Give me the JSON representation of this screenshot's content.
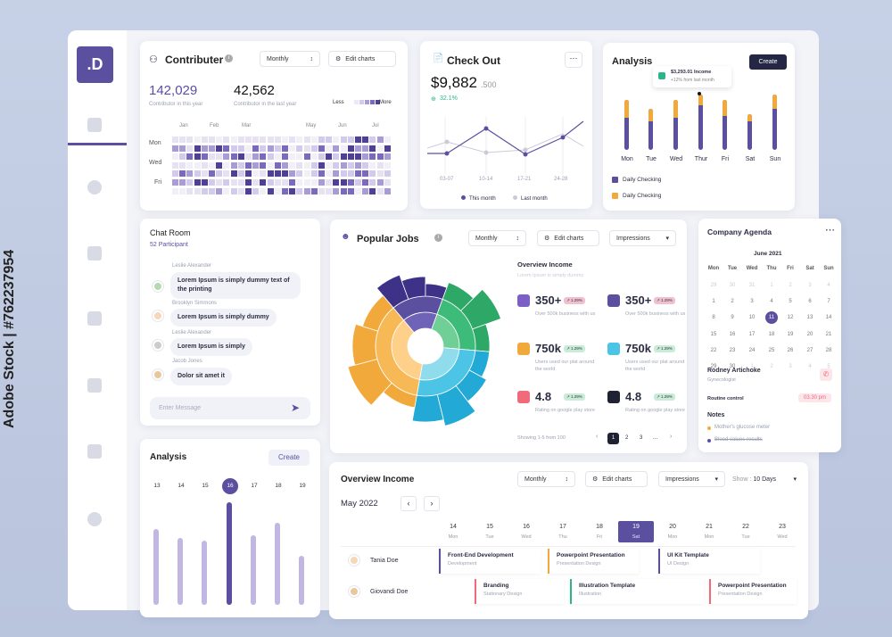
{
  "logo": ".D",
  "stock_watermark": "Adobe Stock | #762237954",
  "contributer": {
    "title": "Contributer",
    "period": "Monthly",
    "edit": "Edit charts",
    "stat1_value": "142,029",
    "stat1_label": "Contributor in this year",
    "stat2_value": "42,562",
    "stat2_label": "Contributor in the last year",
    "legend_less": "Less",
    "legend_more": "More",
    "months": [
      "Jan",
      "Feb",
      "Mar",
      "May",
      "Jun",
      "Jul"
    ],
    "days": [
      "Mon",
      "Wed",
      "Fri"
    ]
  },
  "checkout": {
    "title": "Check Out",
    "amount": "$9,882",
    "cents": ".500",
    "growth": "32.1%",
    "x_labels": [
      "03-07",
      "10-14",
      "17-21",
      "24-28"
    ],
    "legend_this": "This month",
    "legend_last": "Last month",
    "colors": {
      "this": "#5b4fa0",
      "last": "#c9ccd8"
    }
  },
  "analysis_top": {
    "title": "Analysis",
    "create": "Create",
    "tooltip_value": "$3,293.01 Income",
    "tooltip_sub": "+12% from last month",
    "days": [
      "Mon",
      "Tue",
      "Wed",
      "Thur",
      "Fri",
      "Sat",
      "Sun"
    ],
    "legend": [
      "Daily Checking",
      "Daily Checking"
    ],
    "colors": {
      "purple": "#5b4fa0",
      "orange": "#f2a93b"
    }
  },
  "chat": {
    "title": "Chat Room",
    "participants": "52 Participant",
    "messages": [
      {
        "name": "Leslie Alexander",
        "text": "Lorem Ipsum is simply dummy text of the printing"
      },
      {
        "name": "Brooklyn Simmons",
        "text": "Lorem Ipsum is simply dummy"
      },
      {
        "name": "Leslie Alexander",
        "text": "Lorem Ipsum is simply"
      },
      {
        "name": "Jacob Jones",
        "text": "Dolor sit amet it"
      }
    ],
    "input_placeholder": "Enter Message"
  },
  "popular": {
    "title": "Popular Jobs",
    "period": "Monthly",
    "edit": "Edit charts",
    "metric": "Impressions",
    "overview_title": "Overview Income",
    "overview_sub": "Lorem Ipsum is simply dummy",
    "stats": [
      {
        "value": "350+",
        "badge": "1.29%",
        "sub": "Over 500k business with us",
        "color": "#7b5fc7",
        "badge_color": "#f1c0d0"
      },
      {
        "value": "350+",
        "badge": "1.29%",
        "sub": "Over 500k business with us",
        "color": "#5b4fa0",
        "badge_color": "#f1c0d0"
      },
      {
        "value": "750k",
        "badge": "1.29%",
        "sub": "Users used our plat around the world",
        "color": "#f2a93b",
        "badge_color": "#c8ecd8"
      },
      {
        "value": "750k",
        "badge": "1.29%",
        "sub": "Users used our plat around the world",
        "color": "#4cc4e6",
        "badge_color": "#c8ecd8"
      },
      {
        "value": "4.8",
        "badge": "1.29%",
        "sub": "Rating on google play store",
        "color": "#f06a7a",
        "badge_color": "#c8ecd8"
      },
      {
        "value": "4.8",
        "badge": "1.29%",
        "sub": "Rating on google play store",
        "color": "#1f2233",
        "badge_color": "#c8ecd8"
      }
    ],
    "showing": "Showing 1-5 from 100",
    "pages": [
      "1",
      "2",
      "3",
      "..."
    ]
  },
  "agenda": {
    "title": "Company Agenda",
    "month": "June 2021",
    "weekdays": [
      "Mon",
      "Tue",
      "Wed",
      "Thu",
      "Fri",
      "Sat",
      "Sun"
    ],
    "rows": [
      [
        "29",
        "30",
        "31",
        "1",
        "2",
        "3",
        "4"
      ],
      [
        "1",
        "2",
        "3",
        "4",
        "5",
        "6",
        "7"
      ],
      [
        "8",
        "9",
        "10",
        "11",
        "12",
        "13",
        "14"
      ],
      [
        "15",
        "16",
        "17",
        "18",
        "19",
        "20",
        "21"
      ],
      [
        "22",
        "23",
        "24",
        "25",
        "26",
        "27",
        "28"
      ],
      [
        "29",
        "30",
        "1",
        "2",
        "3",
        "4",
        "5"
      ]
    ],
    "selected": "11",
    "doctor_name": "Rodney Artichoke",
    "doctor_role": "Gynecologist",
    "routine": "Routine control",
    "routine_time": "03.30 pm",
    "notes_title": "Notes",
    "notes": [
      "Mother's glucose meter",
      "Blood values results"
    ]
  },
  "analysis_bottom": {
    "title": "Analysis",
    "create": "Create",
    "days": [
      "13",
      "14",
      "15",
      "16",
      "17",
      "18",
      "19"
    ],
    "selected": "16"
  },
  "overview": {
    "title": "Overview Income",
    "period": "Monthly",
    "edit": "Edit charts",
    "metric": "Impressions",
    "show": "Show :",
    "show_value": "10 Days",
    "month": "May 2022",
    "days": [
      {
        "num": "14",
        "wd": "Mon"
      },
      {
        "num": "15",
        "wd": "Tue"
      },
      {
        "num": "16",
        "wd": "Wed"
      },
      {
        "num": "17",
        "wd": "Thu"
      },
      {
        "num": "18",
        "wd": "Fri"
      },
      {
        "num": "19",
        "wd": "Sat"
      },
      {
        "num": "20",
        "wd": "Mon"
      },
      {
        "num": "21",
        "wd": "Mon"
      },
      {
        "num": "22",
        "wd": "Tue"
      },
      {
        "num": "23",
        "wd": "Wed"
      }
    ],
    "people": [
      "Tania Doe",
      "Giovandi Doe"
    ],
    "tasks": [
      {
        "title": "Front-End Development",
        "sub": "Development",
        "color": "#5b4fa0"
      },
      {
        "title": "Powerpoint Presentation",
        "sub": "Presentation Design",
        "color": "#f2a93b"
      },
      {
        "title": "UI Kit Template",
        "sub": "UI Design",
        "color": "#5b4fa0"
      },
      {
        "title": "Branding",
        "sub": "Stationary Design",
        "color": "#f06a7a"
      },
      {
        "title": "Illustration Template",
        "sub": "Illustration",
        "color": "#2bb58a"
      },
      {
        "title": "Powerpoint Presentation",
        "sub": "Presentation Design",
        "color": "#f06a7a"
      }
    ]
  }
}
